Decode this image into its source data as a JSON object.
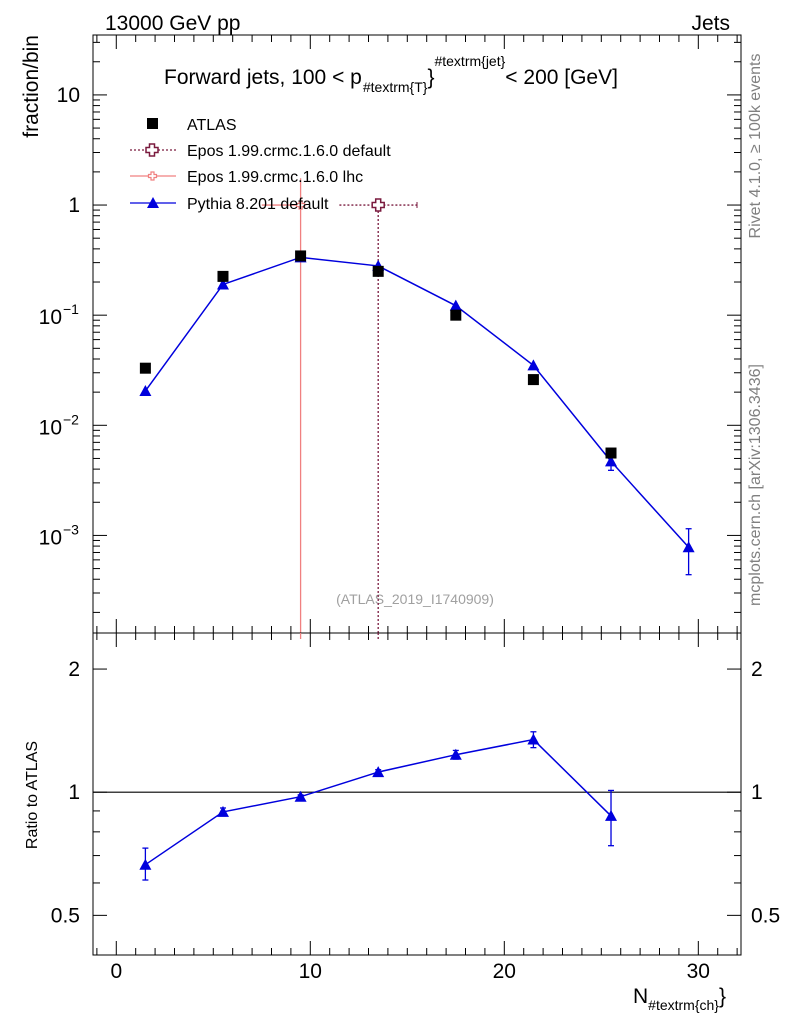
{
  "header": {
    "left": "13000 GeV pp",
    "right": "Jets"
  },
  "side_labels": {
    "rivet": "Rivet 4.1.0, ≥ 100k events",
    "mcplots": "mcplots.cern.ch [arXiv:1306.3436]"
  },
  "watermark": "(ATLAS_2019_I1740909)",
  "chart_data": [
    {
      "type": "scatter",
      "panel": "main",
      "title_parts": [
        "Forward jets, 100 < p",
        "#textrm{T}",
        "#textrm{jet}",
        " < 200 [GeV]"
      ],
      "ylabel": "fraction/bin",
      "yscale": "log",
      "ylim": [
        0.00013,
        35
      ],
      "xlim": [
        -1.2,
        32.2
      ],
      "y_ticks": [
        {
          "value": 10,
          "base": "10",
          "exp": ""
        },
        {
          "value": 1,
          "base": "1",
          "exp": ""
        },
        {
          "value": 0.1,
          "base": "10",
          "exp": "−1"
        },
        {
          "value": 0.01,
          "base": "10",
          "exp": "−2"
        },
        {
          "value": 0.001,
          "base": "10",
          "exp": "−3"
        }
      ],
      "legend_position": "top-left",
      "series": [
        {
          "name": "ATLAS",
          "marker": "square",
          "color": "#000000",
          "x": [
            1.5,
            5.5,
            9.5,
            13.5,
            17.5,
            21.5,
            25.5
          ],
          "y": [
            0.033,
            0.225,
            0.345,
            0.25,
            0.1,
            0.026,
            0.0056
          ]
        },
        {
          "name": "Epos 1.99.crmc.1.6.0 default",
          "marker": "open-cross",
          "color": "#7a1a3e",
          "line": "dotted",
          "x": [
            13.5
          ],
          "y": [
            1.0
          ],
          "xerr": [
            [
              2.0,
              2.0
            ]
          ],
          "yerr": [
            [
              1.0,
              0.0
            ]
          ]
        },
        {
          "name": "Epos 1.99.crmc.1.6.0 lhc",
          "marker": "open-cross-small",
          "color": "#f08080",
          "line": "solid",
          "x": [
            9.5
          ],
          "y": [
            1.0
          ],
          "xerr": [
            [
              2.0,
              0
            ]
          ],
          "yerr": [
            [
              1.0,
              0.75
            ]
          ]
        },
        {
          "name": "Pythia 8.201 default",
          "marker": "triangle",
          "color": "#0000dd",
          "line": "solid",
          "x": [
            1.5,
            5.5,
            9.5,
            13.5,
            17.5,
            21.5,
            25.5,
            29.5
          ],
          "y": [
            0.0205,
            0.19,
            0.335,
            0.28,
            0.122,
            0.035,
            0.0047,
            0.00078
          ],
          "yerr_low": [
            0,
            0,
            0,
            0,
            0,
            0,
            0.0008,
            0.00034
          ],
          "yerr_high": [
            0,
            0,
            0,
            0,
            0,
            0,
            0.0008,
            0.00037
          ]
        }
      ]
    },
    {
      "type": "line",
      "panel": "ratio",
      "ylabel": "Ratio to ATLAS",
      "xlabel_base": "N",
      "xlabel_sub": "#textrm{ch}",
      "yscale": "log",
      "ylim": [
        0.4,
        2.45
      ],
      "xlim": [
        -1.2,
        32.2
      ],
      "x_ticks": [
        0,
        10,
        20,
        30
      ],
      "y_ticks": [
        "0.5",
        "1",
        "2"
      ],
      "y_tick_values": [
        0.5,
        1,
        2
      ],
      "reference_line": 1,
      "series": [
        {
          "name": "Pythia 8.201 default",
          "color": "#0000dd",
          "x": [
            1.5,
            5.5,
            9.5,
            13.5,
            17.5,
            21.5,
            25.5
          ],
          "y": [
            0.665,
            0.895,
            0.975,
            1.12,
            1.235,
            1.345,
            0.875
          ],
          "yerr_low": [
            0.055,
            0.02,
            0.01,
            0.015,
            0.03,
            0.06,
            0.135
          ],
          "yerr_high": [
            0.065,
            0.02,
            0.01,
            0.015,
            0.03,
            0.06,
            0.135
          ]
        }
      ]
    }
  ]
}
